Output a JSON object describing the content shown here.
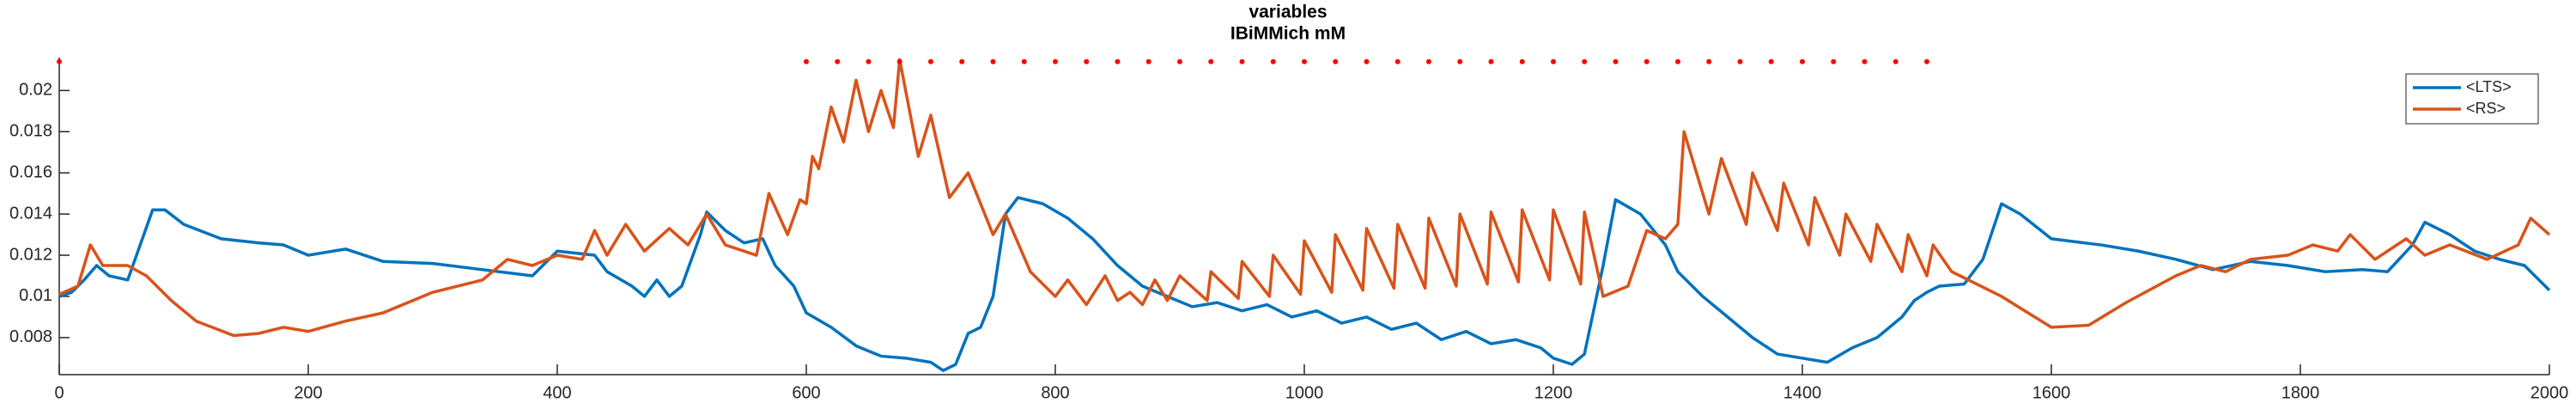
{
  "chart_data": {
    "type": "line",
    "title": "variables",
    "subtitle": "IBiMMich mM",
    "xlim": [
      0,
      2000
    ],
    "xticks": [
      0,
      200,
      400,
      600,
      800,
      1000,
      1200,
      1400,
      1600,
      1800,
      2000
    ],
    "ylim": [
      0.0062,
      0.0216
    ],
    "yticks": [
      0.008,
      0.01,
      0.012,
      0.014,
      0.016,
      0.018,
      0.02
    ],
    "grid": false,
    "legend": "upper right",
    "series": [
      {
        "name": "<LTS>",
        "color": "#0072bd",
        "x": [
          0,
          10,
          20,
          30,
          40,
          55,
          65,
          75,
          85,
          100,
          130,
          160,
          180,
          200,
          230,
          260,
          300,
          340,
          380,
          400,
          430,
          440,
          460,
          470,
          480,
          490,
          500,
          515,
          520,
          535,
          550,
          565,
          575,
          590,
          600,
          620,
          640,
          660,
          680,
          700,
          710,
          720,
          730,
          740,
          750,
          760,
          770,
          790,
          810,
          830,
          850,
          870,
          890,
          910,
          930,
          950,
          970,
          990,
          1010,
          1030,
          1050,
          1070,
          1090,
          1110,
          1130,
          1150,
          1170,
          1190,
          1200,
          1215,
          1225,
          1240,
          1250,
          1270,
          1290,
          1300,
          1320,
          1340,
          1360,
          1380,
          1400,
          1420,
          1440,
          1460,
          1480,
          1490,
          1500,
          1510,
          1530,
          1545,
          1560,
          1575,
          1600,
          1640,
          1670,
          1700,
          1730,
          1760,
          1790,
          1820,
          1850,
          1870,
          1890,
          1900,
          1920,
          1940,
          1960,
          1980,
          2000
        ],
        "values": [
          0.01,
          0.0102,
          0.0108,
          0.0115,
          0.011,
          0.0108,
          0.0125,
          0.0142,
          0.0142,
          0.0135,
          0.0128,
          0.0126,
          0.0125,
          0.012,
          0.0123,
          0.0117,
          0.0116,
          0.0113,
          0.011,
          0.0122,
          0.012,
          0.0112,
          0.0105,
          0.01,
          0.0108,
          0.01,
          0.0105,
          0.013,
          0.0141,
          0.0132,
          0.0126,
          0.0128,
          0.0115,
          0.0105,
          0.0092,
          0.0085,
          0.0076,
          0.0071,
          0.007,
          0.0068,
          0.0064,
          0.0067,
          0.0082,
          0.0085,
          0.01,
          0.014,
          0.0148,
          0.0145,
          0.0138,
          0.0128,
          0.0115,
          0.0105,
          0.01,
          0.0095,
          0.0097,
          0.0093,
          0.0096,
          0.009,
          0.0093,
          0.0087,
          0.009,
          0.0084,
          0.0087,
          0.0079,
          0.0083,
          0.0077,
          0.0079,
          0.0075,
          0.007,
          0.0067,
          0.0072,
          0.0115,
          0.0147,
          0.014,
          0.0125,
          0.0112,
          0.01,
          0.009,
          0.008,
          0.0072,
          0.007,
          0.0068,
          0.0075,
          0.008,
          0.009,
          0.0098,
          0.0102,
          0.0105,
          0.0106,
          0.0118,
          0.0145,
          0.014,
          0.0128,
          0.0125,
          0.0122,
          0.0118,
          0.0113,
          0.0117,
          0.0115,
          0.0112,
          0.0113,
          0.0112,
          0.0125,
          0.0136,
          0.013,
          0.0122,
          0.0118,
          0.0115,
          0.0103
        ]
      },
      {
        "name": "<RS>",
        "color": "#d95319",
        "x": [
          0,
          15,
          25,
          35,
          55,
          70,
          90,
          110,
          140,
          160,
          180,
          200,
          230,
          260,
          300,
          340,
          360,
          380,
          400,
          420,
          430,
          440,
          455,
          470,
          490,
          505,
          520,
          535,
          560,
          570,
          585,
          595,
          600,
          605,
          610,
          620,
          630,
          640,
          650,
          660,
          670,
          675,
          690,
          700,
          715,
          730,
          750,
          760,
          780,
          800,
          810,
          825,
          840,
          850,
          860,
          870,
          880,
          890,
          900,
          922,
          925,
          947,
          950,
          972,
          975,
          997,
          1000,
          1022,
          1025,
          1047,
          1050,
          1072,
          1075,
          1097,
          1100,
          1122,
          1125,
          1147,
          1150,
          1172,
          1175,
          1197,
          1200,
          1222,
          1225,
          1240,
          1260,
          1275,
          1290,
          1300,
          1305,
          1325,
          1335,
          1355,
          1360,
          1380,
          1385,
          1405,
          1410,
          1430,
          1435,
          1455,
          1460,
          1480,
          1485,
          1500,
          1505,
          1520,
          1560,
          1600,
          1630,
          1660,
          1700,
          1720,
          1740,
          1760,
          1790,
          1810,
          1830,
          1840,
          1860,
          1885,
          1900,
          1920,
          1950,
          1975,
          1985,
          2000
        ],
        "values": [
          0.0101,
          0.0105,
          0.0125,
          0.0115,
          0.0115,
          0.011,
          0.0098,
          0.0088,
          0.0081,
          0.0082,
          0.0085,
          0.0083,
          0.0088,
          0.0092,
          0.0102,
          0.0108,
          0.0118,
          0.0115,
          0.012,
          0.0118,
          0.0132,
          0.012,
          0.0135,
          0.0122,
          0.0133,
          0.0125,
          0.014,
          0.0125,
          0.012,
          0.015,
          0.013,
          0.0147,
          0.0145,
          0.0168,
          0.0162,
          0.0192,
          0.0175,
          0.0205,
          0.018,
          0.02,
          0.0182,
          0.0215,
          0.0168,
          0.0188,
          0.0148,
          0.016,
          0.013,
          0.014,
          0.0112,
          0.01,
          0.0108,
          0.0096,
          0.011,
          0.0098,
          0.0102,
          0.0096,
          0.0108,
          0.0098,
          0.011,
          0.0098,
          0.0112,
          0.0099,
          0.0117,
          0.01,
          0.012,
          0.0101,
          0.0127,
          0.0102,
          0.013,
          0.0103,
          0.0133,
          0.0104,
          0.0135,
          0.0104,
          0.0138,
          0.0105,
          0.014,
          0.0106,
          0.0141,
          0.0107,
          0.0142,
          0.0108,
          0.0142,
          0.0106,
          0.0141,
          0.01,
          0.0105,
          0.0132,
          0.0128,
          0.0135,
          0.018,
          0.014,
          0.0167,
          0.0135,
          0.016,
          0.0132,
          0.0155,
          0.0125,
          0.0148,
          0.012,
          0.014,
          0.0117,
          0.0135,
          0.0112,
          0.013,
          0.011,
          0.0125,
          0.0112,
          0.01,
          0.0085,
          0.0086,
          0.0097,
          0.011,
          0.0115,
          0.0112,
          0.0118,
          0.012,
          0.0125,
          0.0122,
          0.013,
          0.0118,
          0.0128,
          0.012,
          0.0125,
          0.0118,
          0.0125,
          0.0138,
          0.013
        ]
      }
    ],
    "markers": {
      "color": "#ff0000",
      "y": 0.0214,
      "x": [
        0,
        600,
        625,
        650,
        675,
        700,
        725,
        750,
        775,
        800,
        825,
        850,
        875,
        900,
        925,
        950,
        975,
        1000,
        1025,
        1050,
        1075,
        1100,
        1125,
        1150,
        1175,
        1200,
        1225,
        1250,
        1275,
        1300,
        1325,
        1350,
        1375,
        1400,
        1425,
        1450,
        1475,
        1500
      ]
    }
  }
}
